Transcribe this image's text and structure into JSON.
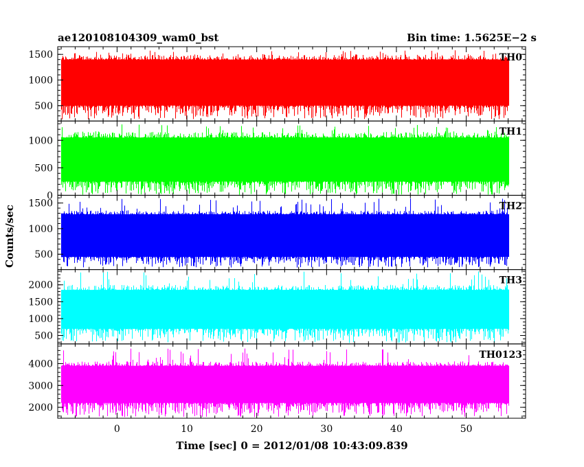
{
  "header": {
    "left_title": "ae120108104309_wam0_bst",
    "right_title": "Bin time: 1.5625E−2 s"
  },
  "chart_data": {
    "type": "line",
    "title": "ae120108104309_wam0_bst",
    "subtitle": "Bin time: 1.5625E−2 s",
    "xlabel": "Time [sec] 0 = 2012/01/08 10:43:09.839",
    "ylabel": "Counts/sec",
    "xlim": [
      -8.5,
      58.5
    ],
    "data_x_range": [
      -8,
      56
    ],
    "x_ticks": [
      0,
      10,
      20,
      30,
      40,
      50
    ],
    "grid": false,
    "panels": [
      {
        "name": "TH0",
        "color": "#ff0000",
        "ylim": [
          200,
          1650
        ],
        "y_ticks": [
          500,
          1000,
          1500
        ],
        "band": [
          230,
          1580
        ],
        "core": [
          500,
          1400
        ],
        "peaks": [
          1500,
          1580
        ]
      },
      {
        "name": "TH1",
        "color": "#00ff00",
        "ylim": [
          0,
          1350
        ],
        "y_ticks": [
          0,
          500,
          1000
        ],
        "band": [
          10,
          1290
        ],
        "core": [
          250,
          1050
        ],
        "peaks": [
          1150,
          1290
        ]
      },
      {
        "name": "TH2",
        "color": "#0000ff",
        "ylim": [
          200,
          1650
        ],
        "y_ticks": [
          500,
          1000,
          1500
        ],
        "band": [
          240,
          1600
        ],
        "core": [
          450,
          1280
        ],
        "peaks": [
          1350,
          1600
        ]
      },
      {
        "name": "TH3",
        "color": "#00ffff",
        "ylim": [
          250,
          2450
        ],
        "y_ticks": [
          500,
          1000,
          1500,
          2000
        ],
        "band": [
          280,
          2400
        ],
        "core": [
          700,
          1850
        ],
        "peaks": [
          2000,
          2400
        ]
      },
      {
        "name": "TH0123",
        "color": "#ff00ff",
        "ylim": [
          1500,
          4900
        ],
        "y_ticks": [
          2000,
          3000,
          4000
        ],
        "band": [
          1550,
          4700
        ],
        "core": [
          2200,
          3900
        ],
        "peaks": [
          4100,
          4700
        ]
      }
    ]
  }
}
